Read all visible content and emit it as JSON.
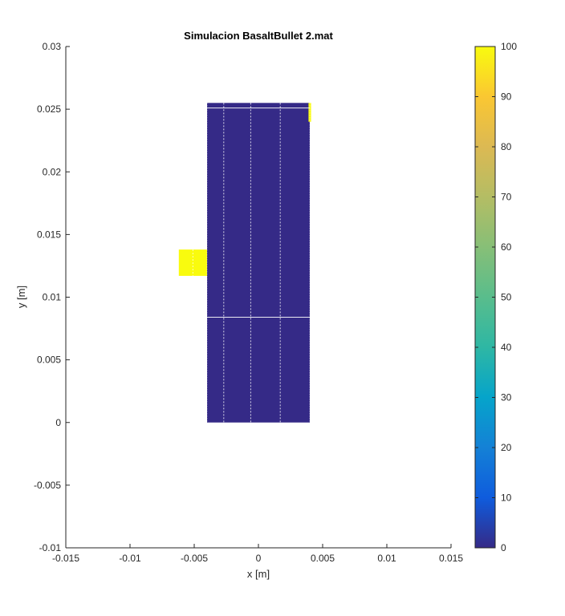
{
  "chart_data": {
    "type": "heatmap",
    "title": "Simulacion BasaltBullet 2.mat",
    "xlabel": "x  [m]",
    "ylabel": "y [m]",
    "xlim": [
      -0.015,
      0.015
    ],
    "ylim": [
      -0.01,
      0.03
    ],
    "xticks": [
      "-0.015",
      "-0.01",
      "-0.005",
      "0",
      "0.005",
      "0.01",
      "0.015"
    ],
    "yticks": [
      "-0.01",
      "-0.005",
      "0",
      "0.005",
      "0.01",
      "0.015",
      "0.02",
      "0.025",
      "0.03"
    ],
    "grid": false,
    "colorbar": {
      "range": [
        0,
        100
      ],
      "ticks": [
        "0",
        "10",
        "20",
        "30",
        "40",
        "50",
        "60",
        "70",
        "80",
        "90",
        "100"
      ],
      "colormap": "parula"
    },
    "regions": [
      {
        "name": "target block",
        "x": [
          -0.004,
          0.004
        ],
        "y": [
          0,
          0.0255
        ],
        "value": 0
      },
      {
        "name": "projectile",
        "x": [
          -0.0062,
          -0.004
        ],
        "y": [
          0.0117,
          0.0138
        ],
        "value": 100
      },
      {
        "name": "corner cells",
        "x": [
          0.0039,
          0.0041
        ],
        "y": [
          0.024,
          0.0255
        ],
        "value": 100
      }
    ],
    "colors": {
      "low": "#352A87",
      "high": "#F9FB0E"
    }
  }
}
